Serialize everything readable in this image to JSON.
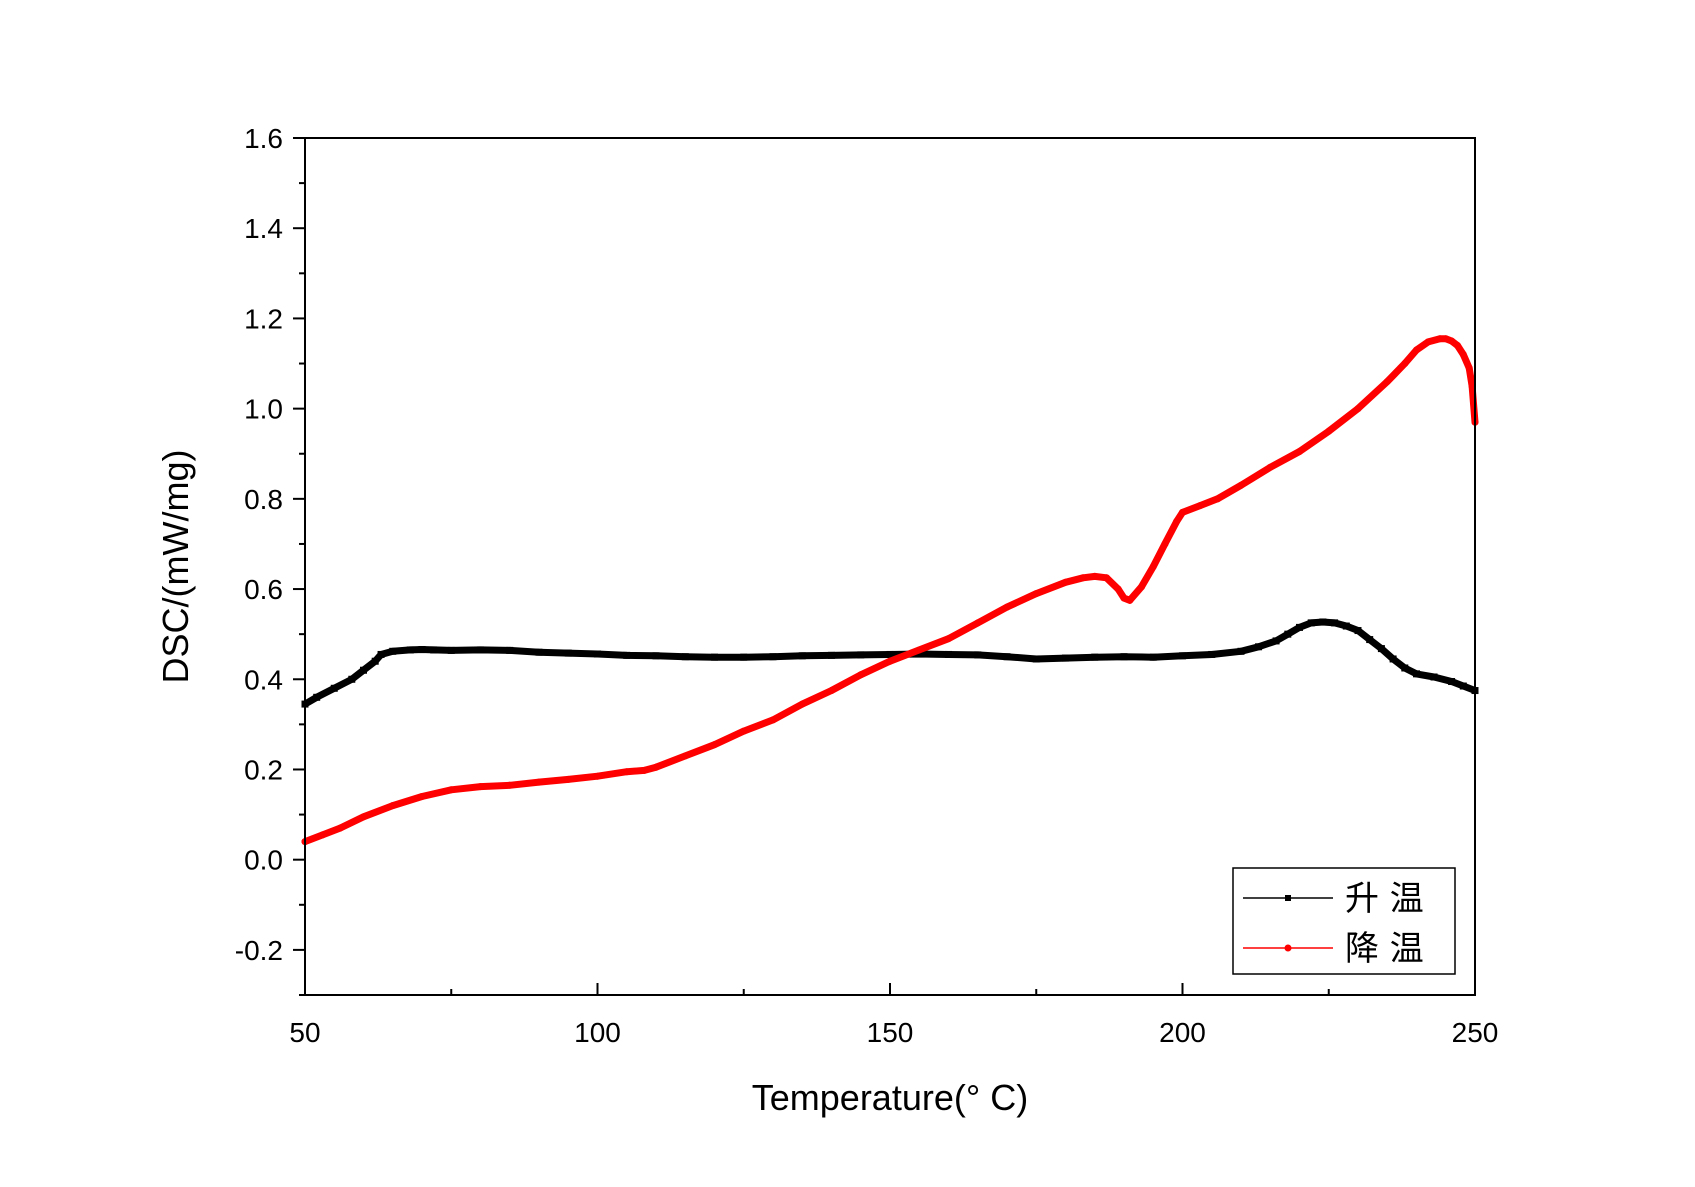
{
  "chart_data": {
    "type": "line",
    "xlabel": "Temperature(° C)",
    "ylabel": "DSC/(mW/mg)",
    "xlim": [
      50,
      250
    ],
    "ylim": [
      -0.3,
      1.6
    ],
    "xticks": [
      50,
      100,
      150,
      200,
      250
    ],
    "yticks": [
      -0.2,
      0.0,
      0.2,
      0.4,
      0.6,
      0.8,
      1.0,
      1.2,
      1.4,
      1.6
    ],
    "xtick_labels": [
      "50",
      "100",
      "150",
      "200",
      "250"
    ],
    "ytick_labels": [
      "-0.2",
      "0.0",
      "0.2",
      "0.4",
      "0.6",
      "0.8",
      "1.0",
      "1.2",
      "1.4",
      "1.6"
    ],
    "grid": false,
    "legend_position": "bottom-right",
    "series": [
      {
        "name": "升 温",
        "color": "#000000",
        "marker": "square",
        "x": [
          50,
          52,
          55,
          58,
          60,
          62,
          63,
          65,
          68,
          70,
          72,
          75,
          80,
          85,
          90,
          95,
          100,
          105,
          110,
          115,
          120,
          125,
          130,
          135,
          140,
          145,
          150,
          155,
          160,
          165,
          170,
          175,
          180,
          185,
          190,
          195,
          200,
          205,
          210,
          213,
          216,
          218,
          220,
          222,
          224,
          226,
          228,
          230,
          232,
          234,
          236,
          238,
          240,
          243,
          246,
          248,
          250
        ],
        "y": [
          0.345,
          0.36,
          0.38,
          0.4,
          0.42,
          0.44,
          0.455,
          0.462,
          0.465,
          0.466,
          0.465,
          0.464,
          0.465,
          0.464,
          0.46,
          0.458,
          0.456,
          0.453,
          0.452,
          0.45,
          0.449,
          0.449,
          0.45,
          0.452,
          0.453,
          0.454,
          0.455,
          0.456,
          0.455,
          0.454,
          0.45,
          0.445,
          0.447,
          0.449,
          0.45,
          0.449,
          0.452,
          0.455,
          0.462,
          0.472,
          0.485,
          0.5,
          0.515,
          0.525,
          0.527,
          0.525,
          0.518,
          0.508,
          0.488,
          0.468,
          0.445,
          0.425,
          0.412,
          0.405,
          0.395,
          0.385,
          0.375
        ]
      },
      {
        "name": "降 温",
        "color": "#ff0000",
        "marker": "circle",
        "x": [
          50,
          53,
          56,
          60,
          65,
          70,
          75,
          80,
          85,
          90,
          95,
          100,
          105,
          108,
          110,
          115,
          120,
          125,
          130,
          135,
          140,
          145,
          150,
          155,
          160,
          165,
          170,
          175,
          180,
          183,
          185,
          187,
          189,
          190,
          191,
          193,
          195,
          197,
          199,
          200,
          203,
          206,
          210,
          215,
          220,
          225,
          230,
          235,
          238,
          240,
          242,
          244,
          245,
          246,
          247,
          248,
          249,
          249.5,
          250
        ],
        "y": [
          0.04,
          0.055,
          0.07,
          0.095,
          0.12,
          0.14,
          0.155,
          0.162,
          0.165,
          0.172,
          0.178,
          0.185,
          0.195,
          0.198,
          0.205,
          0.23,
          0.255,
          0.285,
          0.31,
          0.345,
          0.375,
          0.41,
          0.44,
          0.465,
          0.49,
          0.525,
          0.56,
          0.59,
          0.615,
          0.625,
          0.628,
          0.625,
          0.6,
          0.58,
          0.575,
          0.605,
          0.65,
          0.7,
          0.75,
          0.77,
          0.785,
          0.8,
          0.83,
          0.87,
          0.905,
          0.95,
          1.0,
          1.06,
          1.1,
          1.13,
          1.148,
          1.155,
          1.155,
          1.15,
          1.14,
          1.12,
          1.09,
          1.05,
          0.97
        ]
      }
    ]
  }
}
